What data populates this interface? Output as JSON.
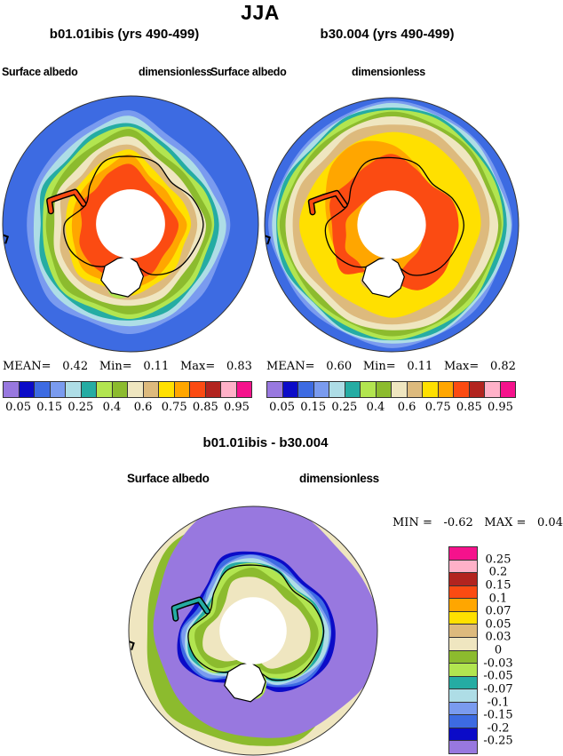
{
  "title": "JJA",
  "panels": [
    {
      "subtitle": "b01.01ibis (yrs 490-499)",
      "field_label": "Surface albedo",
      "units_label": "dimensionless",
      "stats": [
        {
          "label": "MEAN=",
          "value": "0.42"
        },
        {
          "label": "Min=",
          "value": "0.11"
        },
        {
          "label": "Max=",
          "value": "0.83"
        }
      ]
    },
    {
      "subtitle": "b30.004 (yrs 490-499)",
      "field_label": "Surface albedo",
      "units_label": "dimensionless",
      "stats": [
        {
          "label": "MEAN=",
          "value": "0.60"
        },
        {
          "label": "Min=",
          "value": "0.11"
        },
        {
          "label": "Max=",
          "value": "0.82"
        }
      ]
    }
  ],
  "diff_panel": {
    "subtitle": "b01.01ibis - b30.004",
    "field_label": "Surface albedo",
    "units_label": "dimensionless",
    "stats": [
      {
        "label": "MIN =",
        "value": "-0.62"
      },
      {
        "label": "MAX =",
        "value": "0.04"
      }
    ]
  },
  "albedo_colorbar": {
    "colors": [
      "#9878DF",
      "#0B0BC8",
      "#3D6BE2",
      "#7A9BEF",
      "#AEDDE6",
      "#25ACA3",
      "#B2E550",
      "#8CBB2E",
      "#EFE6C0",
      "#DDBA7D",
      "#FFE000",
      "#FFA600",
      "#FB4B12",
      "#B2241F",
      "#FFB1C8",
      "#F5128C"
    ],
    "labels": [
      "0.05",
      "0.15",
      "0.25",
      "0.4",
      "0.6",
      "0.75",
      "0.85",
      "0.95"
    ]
  },
  "diff_colorbar": {
    "colors": [
      "#F5128C",
      "#FFB1C8",
      "#B2241F",
      "#FB4B12",
      "#FFA600",
      "#FFE000",
      "#DDBA7D",
      "#EFE6C0",
      "#8CBB2E",
      "#B2E550",
      "#25ACA3",
      "#AEDDE6",
      "#7A9BEF",
      "#3D6BE2",
      "#0B0BC8",
      "#9878DF"
    ],
    "labels": [
      "0.25",
      "0.2",
      "0.15",
      "0.1",
      "0.07",
      "0.05",
      "0.03",
      "0",
      "-0.03",
      "-0.05",
      "-0.07",
      "-0.1",
      "-0.15",
      "-0.2",
      "-0.25"
    ]
  },
  "map_colors": {
    "ocean": "#3D6BE2",
    "pole_hole": "#FFFFFF",
    "ice_shelf": "#FFFFFF",
    "coastline": "#000000",
    "map_outline": "#333333"
  },
  "chart_data": {
    "type": "heatmap",
    "subtype": "filled-contour polar stereographic maps (Antarctica / Southern Ocean)",
    "season_title": "JJA",
    "variable": "Surface albedo",
    "units": "dimensionless",
    "panels": [
      {
        "name": "b01.01ibis (yrs 490-499)",
        "mean": 0.42,
        "min": 0.11,
        "max": 0.83,
        "colorbar_labels": [
          0.05,
          0.15,
          0.25,
          0.4,
          0.6,
          0.75,
          0.85,
          0.95
        ],
        "colorbar_orientation": "horizontal-below"
      },
      {
        "name": "b30.004 (yrs 490-499)",
        "mean": 0.6,
        "min": 0.11,
        "max": 0.82,
        "colorbar_labels": [
          0.05,
          0.15,
          0.25,
          0.4,
          0.6,
          0.75,
          0.85,
          0.95
        ],
        "colorbar_orientation": "horizontal-below"
      },
      {
        "name": "b01.01ibis - b30.004",
        "min": -0.62,
        "max": 0.04,
        "colorbar_labels": [
          0.25,
          0.2,
          0.15,
          0.1,
          0.07,
          0.05,
          0.03,
          0,
          -0.03,
          -0.05,
          -0.07,
          -0.1,
          -0.15,
          -0.2,
          -0.25
        ],
        "colorbar_orientation": "vertical-right"
      }
    ],
    "palette_low_to_high": [
      "#9878DF",
      "#0B0BC8",
      "#3D6BE2",
      "#7A9BEF",
      "#AEDDE6",
      "#25ACA3",
      "#B2E550",
      "#8CBB2E",
      "#EFE6C0",
      "#DDBA7D",
      "#FFE000",
      "#FFA600",
      "#FB4B12",
      "#B2241F",
      "#FFB1C8",
      "#F5128C"
    ],
    "notes": "Two model runs of JJA surface albedo over the south polar region plus their difference; white central circle is the polar data hole; black outline is the Antarctic coastline."
  }
}
